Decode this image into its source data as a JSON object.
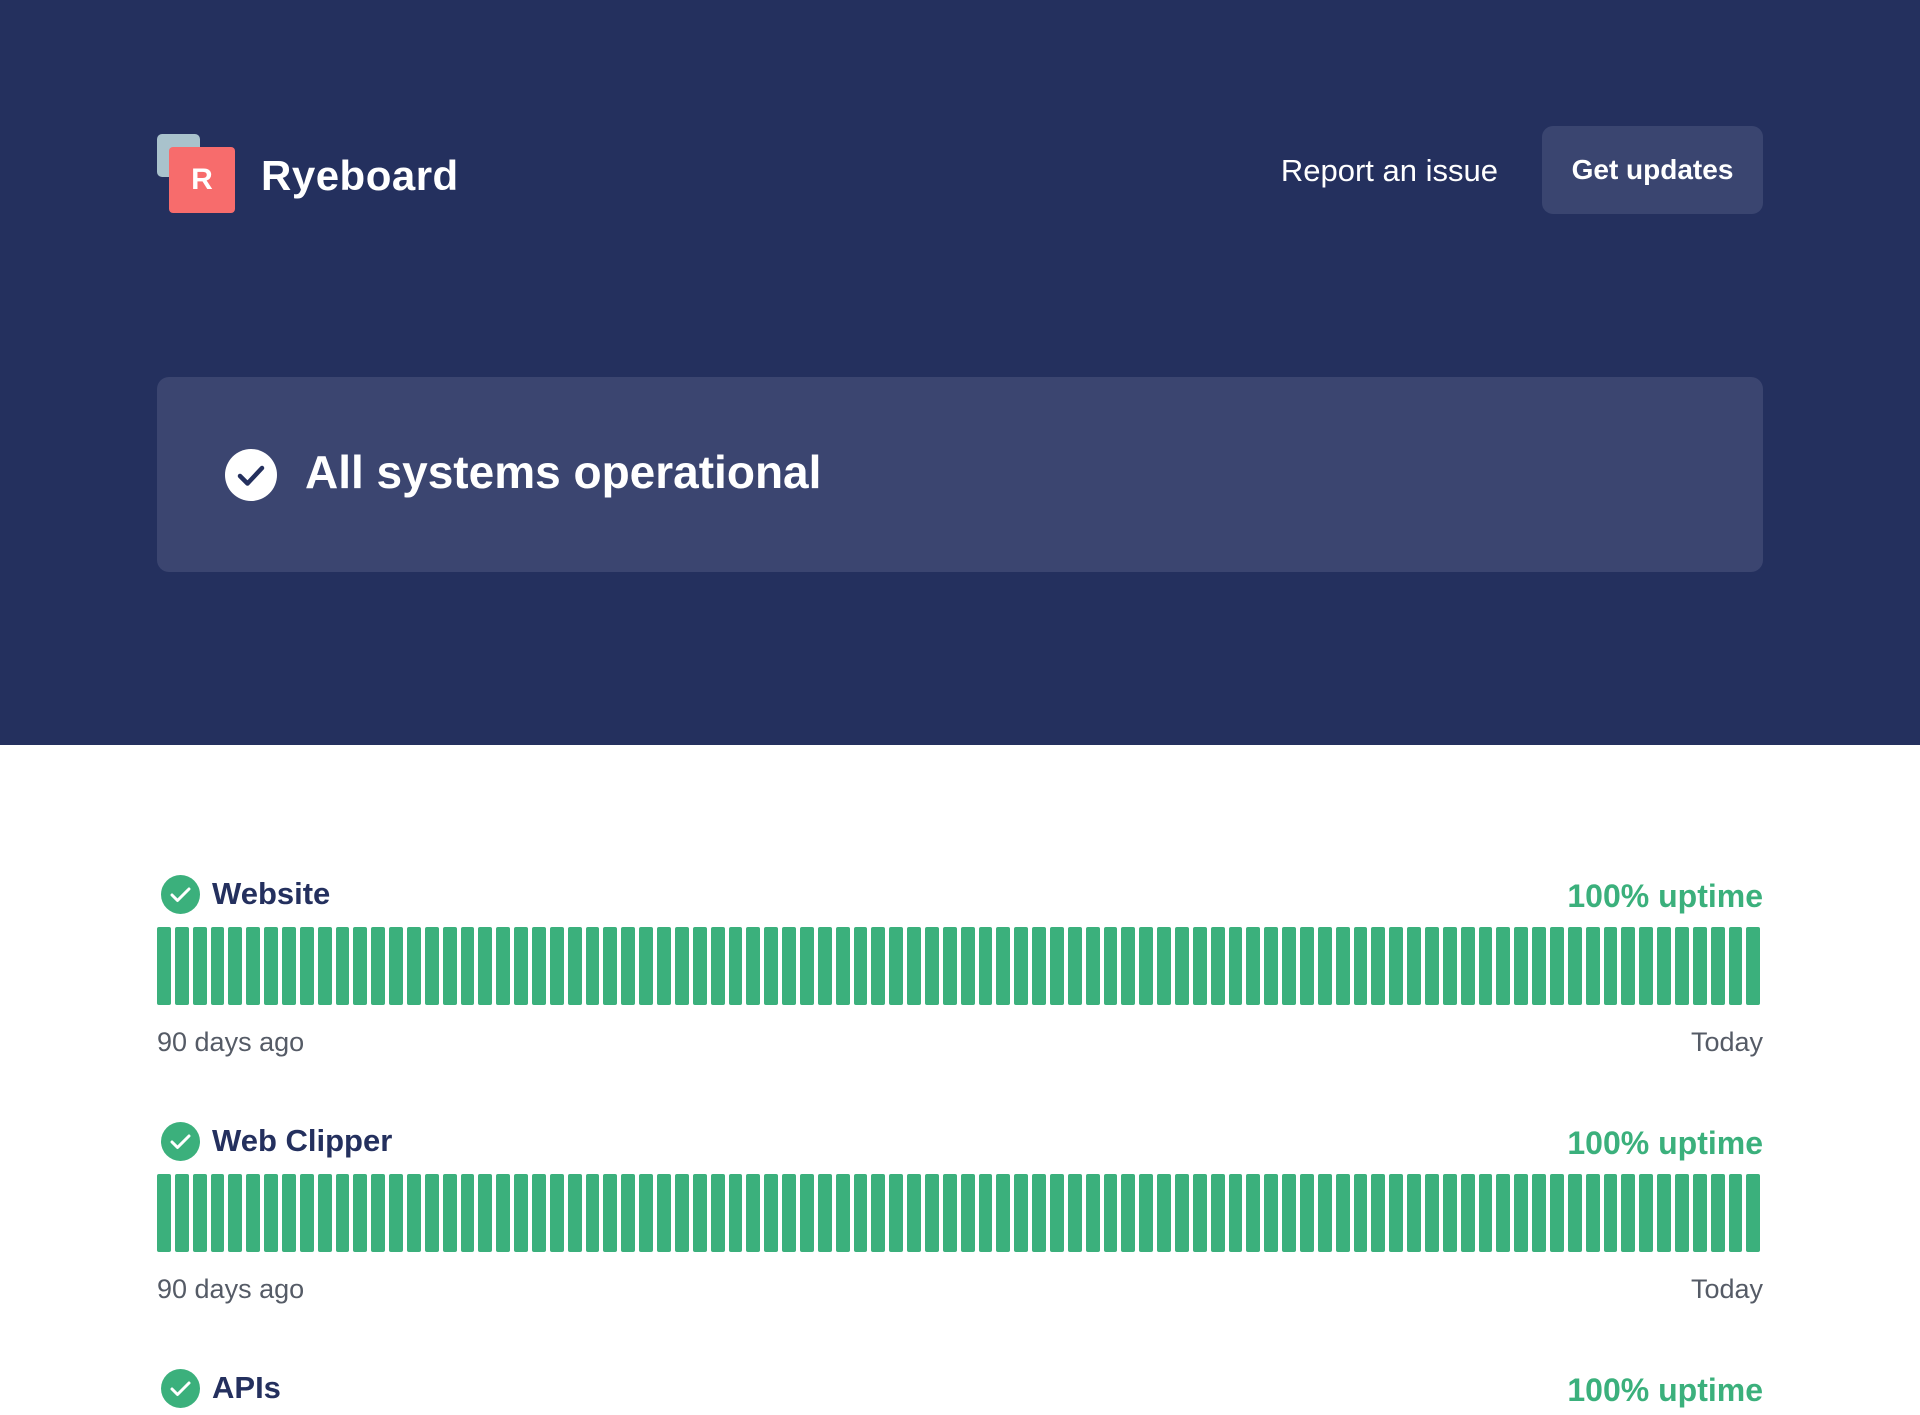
{
  "brand": {
    "logo_letter": "R",
    "name": "Ryeboard",
    "colors": {
      "hero_background": "#24305e",
      "logo_accent": "#f76c6c",
      "operational_green": "#3bb07c"
    }
  },
  "nav": {
    "report_label": "Report an issue",
    "updates_label": "Get updates"
  },
  "status": {
    "icon": "check-circle-icon",
    "title": "All systems operational"
  },
  "components": [
    {
      "name": "Website",
      "uptime": "100% uptime",
      "status": "operational",
      "days": 90,
      "range_start_label": "90 days ago",
      "range_end_label": "Today"
    },
    {
      "name": "Web Clipper",
      "uptime": "100% uptime",
      "status": "operational",
      "days": 90,
      "range_start_label": "90 days ago",
      "range_end_label": "Today"
    },
    {
      "name": "APIs",
      "uptime": "100% uptime",
      "status": "operational"
    }
  ]
}
